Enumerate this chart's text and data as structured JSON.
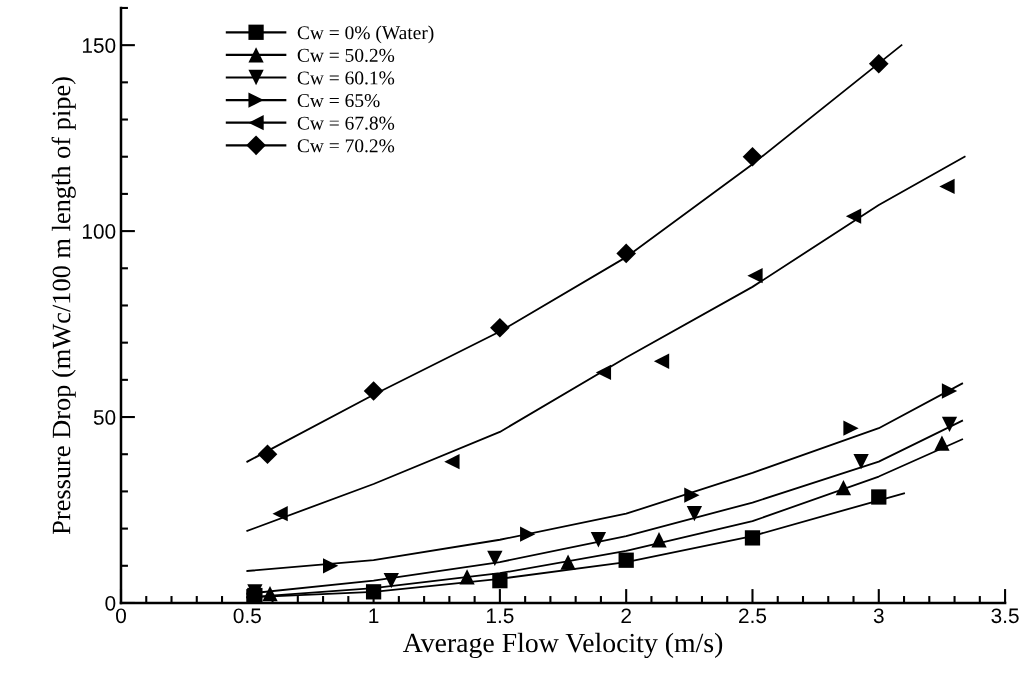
{
  "chart_data": {
    "type": "scatter",
    "xlabel": "Average Flow Velocity (m/s)",
    "ylabel": "Pressure Drop (mWc/100 m length of pipe)",
    "xlim": [
      0,
      3.5
    ],
    "xticks": [
      0,
      0.5,
      1,
      1.5,
      2,
      2.5,
      3,
      3.5
    ],
    "ylim": [
      0,
      160
    ],
    "yticks": [
      0,
      50,
      100,
      150
    ],
    "grid": false,
    "legend": "top left",
    "series": [
      {
        "name": "Cw = 0% (Water)",
        "marker": "square",
        "color": "#000000",
        "x": [
          0.53,
          1.0,
          1.5,
          2.0,
          2.5,
          3.0
        ],
        "values": [
          2,
          3,
          6,
          11.5,
          17.5,
          28.5
        ]
      },
      {
        "name": "Cw = 50.2%",
        "marker": "triangle",
        "color": "#000000",
        "x": [
          0.59,
          1.37,
          1.77,
          2.13,
          2.86,
          3.25
        ],
        "values": [
          2.5,
          7,
          11,
          17,
          31,
          43
        ]
      },
      {
        "name": "Cw = 60.1%",
        "marker": "triangle-down",
        "color": "#000000",
        "x": [
          0.53,
          1.07,
          1.48,
          1.89,
          2.27,
          2.93,
          3.28
        ],
        "values": [
          3,
          6,
          12,
          17,
          24,
          38,
          48
        ]
      },
      {
        "name": "Cw = 65%",
        "marker": "triangle-right",
        "color": "#000000",
        "x": [
          0.83,
          1.61,
          2.26,
          2.89,
          3.28
        ],
        "values": [
          10,
          18.5,
          29,
          47,
          57
        ]
      },
      {
        "name": "Cw = 67.8%",
        "marker": "triangle-left",
        "color": "#000000",
        "x": [
          0.63,
          1.31,
          1.91,
          2.14,
          2.51,
          2.9,
          3.27
        ],
        "values": [
          24,
          38,
          62,
          65,
          88,
          104,
          112
        ]
      },
      {
        "name": "Cw = 70.2%",
        "marker": "diamond",
        "color": "#000000",
        "x": [
          0.58,
          1.0,
          1.5,
          2.0,
          2.5,
          3.0
        ],
        "values": [
          40,
          57,
          74,
          94,
          120,
          145
        ]
      },
      {
        "type": "line",
        "color": "#000000",
        "x": [
          0.5,
          1.0,
          1.5,
          2.0,
          2.5,
          3.1
        ],
        "values": [
          1.5,
          3,
          6.5,
          11,
          18,
          29.5
        ]
      },
      {
        "type": "line",
        "color": "#000000",
        "x": [
          0.5,
          1.0,
          1.5,
          2.0,
          2.5,
          3.0,
          3.33
        ],
        "values": [
          1.5,
          4,
          8,
          14,
          22,
          34,
          44
        ]
      },
      {
        "type": "line",
        "color": "#000000",
        "x": [
          0.5,
          1.0,
          1.5,
          2.0,
          2.5,
          3.0,
          3.33
        ],
        "values": [
          2.5,
          6,
          11,
          18,
          27,
          38,
          49
        ]
      },
      {
        "type": "line",
        "color": "#000000",
        "x": [
          0.5,
          1.0,
          1.5,
          2.0,
          2.5,
          3.0,
          3.33
        ],
        "values": [
          8.6,
          11.5,
          17,
          24,
          35,
          47,
          59
        ]
      },
      {
        "type": "line",
        "color": "#000000",
        "x": [
          0.5,
          1.0,
          1.5,
          2.0,
          2.5,
          3.0,
          3.34
        ],
        "values": [
          19.4,
          32,
          46,
          66,
          85,
          107,
          120
        ]
      },
      {
        "type": "line",
        "color": "#000000",
        "x": [
          0.5,
          1.0,
          1.5,
          2.0,
          2.5,
          3.09
        ],
        "values": [
          38,
          56,
          73,
          93,
          118,
          150
        ]
      }
    ]
  }
}
